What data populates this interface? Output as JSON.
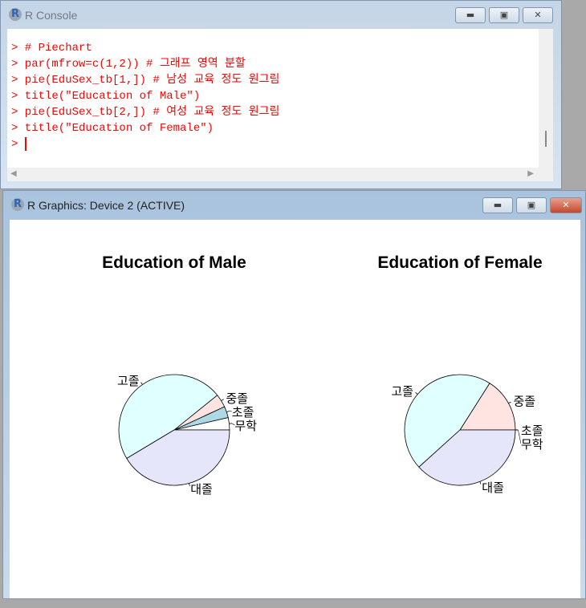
{
  "console": {
    "title": "R Console",
    "lines": [
      "> # Piechart",
      "> par(mfrow=c(1,2)) # 그래프 영역 분할",
      "> pie(EduSex_tb[1,]) # 남성 교육 정도 원그림",
      "> title(\"Education of Male\")",
      "> pie(EduSex_tb[2,]) # 여성 교육 정도 원그림",
      "> title(\"Education of Female\")"
    ],
    "prompt": ">"
  },
  "graphics": {
    "title": "R Graphics: Device 2 (ACTIVE)"
  },
  "window_buttons": {
    "minimize": "▬",
    "maximize": "▣",
    "close": "✕"
  },
  "chart_data": [
    {
      "type": "pie",
      "title": "Education of Male",
      "labels": [
        "무학",
        "초졸",
        "중졸",
        "고졸",
        "대졸"
      ],
      "values": [
        3.6,
        3.3,
        3.9,
        47.8,
        41.4
      ],
      "colors": [
        "#ffffff",
        "#add8e6",
        "#ffe4e1",
        "#e0ffff",
        "#e6e6fa"
      ]
    },
    {
      "type": "pie",
      "title": "Education of Female",
      "labels": [
        "무학",
        "초졸",
        "중졸",
        "고졸",
        "대졸"
      ],
      "values": [
        0,
        0,
        16.0,
        45.7,
        38.3
      ],
      "colors": [
        "#ffffff",
        "#add8e6",
        "#ffe4e1",
        "#e0ffff",
        "#e6e6fa"
      ]
    }
  ]
}
